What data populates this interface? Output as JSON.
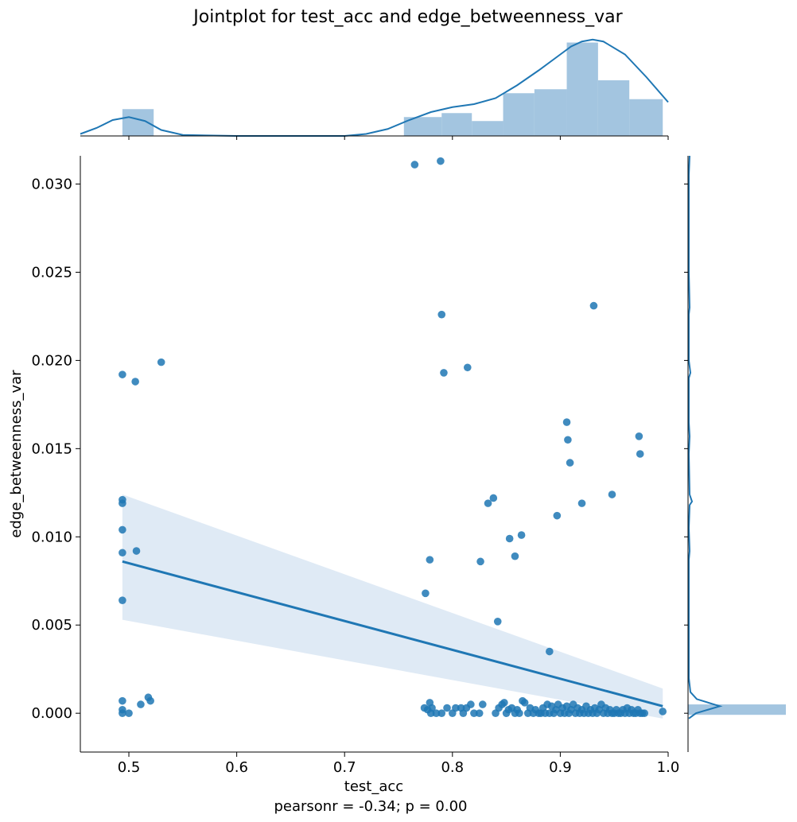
{
  "figure": {
    "title": "Jointplot for test_acc and edge_betweenness_var",
    "xlabel": "test_acc",
    "ylabel": "edge_betweenness_var",
    "annotation": "pearsonr = -0.34; p = 0.00"
  },
  "colors": {
    "points": "#1f77b4",
    "line": "#1f77b4",
    "band": "#aac8e4",
    "hist": "#8cb6d8",
    "axes": "#000000"
  },
  "chart_data": {
    "type": "scatter",
    "title": "Jointplot for test_acc and edge_betweenness_var",
    "xlabel": "test_acc",
    "ylabel": "edge_betweenness_var",
    "xlim": [
      0.455,
      1.0
    ],
    "ylim": [
      -0.0022,
      0.0316
    ],
    "x_ticks": [
      0.5,
      0.6,
      0.7,
      0.8,
      0.9,
      1.0
    ],
    "x_tick_labels": [
      "0.5",
      "0.6",
      "0.7",
      "0.8",
      "0.9",
      "1.0"
    ],
    "y_ticks": [
      0.0,
      0.005,
      0.01,
      0.015,
      0.02,
      0.025,
      0.03
    ],
    "y_tick_labels": [
      "0.000",
      "0.005",
      "0.010",
      "0.015",
      "0.020",
      "0.025",
      "0.030"
    ],
    "grid": false,
    "points": [
      [
        0.765,
        0.0311
      ],
      [
        0.789,
        0.0313
      ],
      [
        0.931,
        0.0231
      ],
      [
        0.79,
        0.0226
      ],
      [
        0.53,
        0.0199
      ],
      [
        0.494,
        0.0192
      ],
      [
        0.506,
        0.0188
      ],
      [
        0.792,
        0.0193
      ],
      [
        0.814,
        0.0196
      ],
      [
        0.906,
        0.0165
      ],
      [
        0.907,
        0.0155
      ],
      [
        0.909,
        0.0142
      ],
      [
        0.973,
        0.0157
      ],
      [
        0.974,
        0.0147
      ],
      [
        0.948,
        0.0124
      ],
      [
        0.838,
        0.0122
      ],
      [
        0.833,
        0.0119
      ],
      [
        0.92,
        0.0119
      ],
      [
        0.494,
        0.0121
      ],
      [
        0.494,
        0.0119
      ],
      [
        0.897,
        0.0112
      ],
      [
        0.494,
        0.0104
      ],
      [
        0.864,
        0.0101
      ],
      [
        0.853,
        0.0099
      ],
      [
        0.494,
        0.0091
      ],
      [
        0.507,
        0.0092
      ],
      [
        0.858,
        0.0089
      ],
      [
        0.779,
        0.0087
      ],
      [
        0.826,
        0.0086
      ],
      [
        0.775,
        0.0068
      ],
      [
        0.494,
        0.0064
      ],
      [
        0.842,
        0.0052
      ],
      [
        0.89,
        0.0035
      ],
      [
        0.494,
        0.0007
      ],
      [
        0.518,
        0.0009
      ],
      [
        0.52,
        0.0007
      ],
      [
        0.511,
        0.0005
      ],
      [
        0.494,
        0.0002
      ],
      [
        0.494,
        0.0
      ],
      [
        0.5,
        0.0
      ],
      [
        0.774,
        0.0003
      ],
      [
        0.777,
        0.0002
      ],
      [
        0.779,
        0.0006
      ],
      [
        0.781,
        0.0003
      ],
      [
        0.78,
        0.0
      ],
      [
        0.785,
        0.0
      ],
      [
        0.79,
        0.0
      ],
      [
        0.795,
        0.0003
      ],
      [
        0.8,
        0.0
      ],
      [
        0.803,
        0.0003
      ],
      [
        0.808,
        0.0003
      ],
      [
        0.81,
        0.0
      ],
      [
        0.813,
        0.0003
      ],
      [
        0.817,
        0.0005
      ],
      [
        0.82,
        0.0
      ],
      [
        0.825,
        0.0
      ],
      [
        0.828,
        0.0005
      ],
      [
        0.84,
        0.0
      ],
      [
        0.843,
        0.0003
      ],
      [
        0.846,
        0.0005
      ],
      [
        0.848,
        0.0006
      ],
      [
        0.85,
        0.0
      ],
      [
        0.852,
        0.0002
      ],
      [
        0.855,
        0.0003
      ],
      [
        0.858,
        0.0
      ],
      [
        0.86,
        0.0002
      ],
      [
        0.862,
        0.0
      ],
      [
        0.865,
        0.0007
      ],
      [
        0.867,
        0.0006
      ],
      [
        0.87,
        0.0
      ],
      [
        0.872,
        0.0003
      ],
      [
        0.875,
        0.0
      ],
      [
        0.877,
        0.0002
      ],
      [
        0.88,
        0.0
      ],
      [
        0.882,
        0.0
      ],
      [
        0.884,
        0.0003
      ],
      [
        0.886,
        0.0
      ],
      [
        0.888,
        0.0005
      ],
      [
        0.89,
        0.0
      ],
      [
        0.892,
        0.0004
      ],
      [
        0.894,
        0.0
      ],
      [
        0.896,
        0.0002
      ],
      [
        0.898,
        0.0005
      ],
      [
        0.9,
        0.0
      ],
      [
        0.902,
        0.0003
      ],
      [
        0.904,
        0.0
      ],
      [
        0.906,
        0.0004
      ],
      [
        0.908,
        0.0
      ],
      [
        0.91,
        0.0002
      ],
      [
        0.912,
        0.0005
      ],
      [
        0.914,
        0.0
      ],
      [
        0.916,
        0.0003
      ],
      [
        0.918,
        0.0
      ],
      [
        0.92,
        0.0002
      ],
      [
        0.922,
        0.0
      ],
      [
        0.924,
        0.0004
      ],
      [
        0.926,
        0.0
      ],
      [
        0.928,
        0.0002
      ],
      [
        0.93,
        0.0
      ],
      [
        0.932,
        0.0003
      ],
      [
        0.934,
        0.0
      ],
      [
        0.936,
        0.0002
      ],
      [
        0.938,
        0.0005
      ],
      [
        0.94,
        0.0
      ],
      [
        0.942,
        0.0003
      ],
      [
        0.944,
        0.0
      ],
      [
        0.946,
        0.0002
      ],
      [
        0.948,
        0.0
      ],
      [
        0.95,
        0.0
      ],
      [
        0.952,
        0.0002
      ],
      [
        0.954,
        0.0
      ],
      [
        0.956,
        0.0
      ],
      [
        0.958,
        0.0002
      ],
      [
        0.96,
        0.0
      ],
      [
        0.962,
        0.0003
      ],
      [
        0.964,
        0.0
      ],
      [
        0.966,
        0.0002
      ],
      [
        0.968,
        0.0
      ],
      [
        0.97,
        0.0
      ],
      [
        0.972,
        0.0002
      ],
      [
        0.974,
        0.0
      ],
      [
        0.976,
        0.0
      ],
      [
        0.978,
        0.0
      ],
      [
        0.995,
        0.0001
      ]
    ],
    "regression": {
      "x": [
        0.494,
        0.995
      ],
      "y": [
        0.0086,
        0.0004
      ],
      "ci_lower": [
        0.0053,
        -0.0003
      ],
      "ci_upper": [
        0.0124,
        0.0014
      ]
    },
    "marginal_x": {
      "bins": [
        [
          0.494,
          0.523
        ],
        [
          0.523,
          0.552
        ],
        [
          0.552,
          0.581
        ],
        [
          0.581,
          0.61
        ],
        [
          0.61,
          0.639
        ],
        [
          0.639,
          0.668
        ],
        [
          0.668,
          0.697
        ],
        [
          0.697,
          0.726
        ],
        [
          0.726,
          0.755
        ],
        [
          0.755,
          0.79
        ],
        [
          0.79,
          0.818
        ],
        [
          0.818,
          0.847
        ],
        [
          0.847,
          0.876
        ],
        [
          0.876,
          0.906
        ],
        [
          0.906,
          0.935
        ],
        [
          0.935,
          0.964
        ],
        [
          0.964,
          0.995
        ]
      ],
      "density": [
        2.7,
        0.0,
        0.0,
        0.0,
        0.0,
        0.0,
        0.0,
        0.0,
        0.0,
        1.9,
        2.3,
        1.5,
        4.3,
        4.7,
        9.4,
        5.6,
        3.7
      ],
      "kde_x": [
        0.455,
        0.47,
        0.485,
        0.5,
        0.515,
        0.53,
        0.55,
        0.6,
        0.65,
        0.7,
        0.72,
        0.74,
        0.76,
        0.78,
        0.8,
        0.82,
        0.84,
        0.86,
        0.88,
        0.9,
        0.91,
        0.92,
        0.93,
        0.94,
        0.96,
        0.98,
        1.0
      ],
      "kde_y": [
        0.2,
        0.8,
        1.6,
        1.9,
        1.5,
        0.6,
        0.1,
        0.0,
        0.0,
        0.0,
        0.2,
        0.7,
        1.6,
        2.4,
        2.9,
        3.2,
        3.8,
        5.1,
        6.6,
        8.2,
        9.0,
        9.5,
        9.7,
        9.5,
        8.2,
        5.9,
        3.4
      ]
    },
    "marginal_y": {
      "note": "histogram of edge_betweenness_var",
      "bins": [
        [
          0.0,
          0.0005
        ]
      ],
      "density": [
        1.0
      ]
    }
  }
}
